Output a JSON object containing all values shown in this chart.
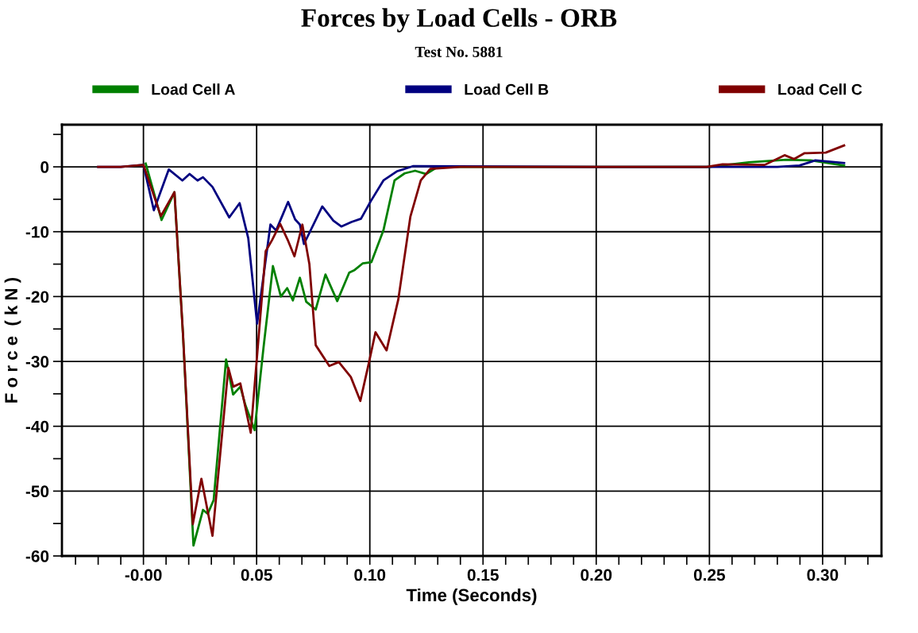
{
  "chart_data": {
    "type": "line",
    "title": "Forces by Load Cells - ORB",
    "subtitle": "Test No. 5881",
    "xlabel": "Time (Seconds)",
    "ylabel": "F o r c e  ( k N )",
    "xlim": [
      -0.036,
      0.326
    ],
    "ylim": [
      -60,
      6.5
    ],
    "xticks": [
      {
        "value": -0.03,
        "label": null
      },
      {
        "value": -0.02,
        "label": null
      },
      {
        "value": -0.01,
        "label": null
      },
      {
        "value": 0,
        "label": "-0.00"
      },
      {
        "value": 0.01,
        "label": null
      },
      {
        "value": 0.02,
        "label": null
      },
      {
        "value": 0.03,
        "label": null
      },
      {
        "value": 0.04,
        "label": null
      },
      {
        "value": 0.05,
        "label": "0.05"
      },
      {
        "value": 0.06,
        "label": null
      },
      {
        "value": 0.07,
        "label": null
      },
      {
        "value": 0.08,
        "label": null
      },
      {
        "value": 0.09,
        "label": null
      },
      {
        "value": 0.1,
        "label": "0.10"
      },
      {
        "value": 0.11,
        "label": null
      },
      {
        "value": 0.12,
        "label": null
      },
      {
        "value": 0.13,
        "label": null
      },
      {
        "value": 0.14,
        "label": null
      },
      {
        "value": 0.15,
        "label": "0.15"
      },
      {
        "value": 0.16,
        "label": null
      },
      {
        "value": 0.17,
        "label": null
      },
      {
        "value": 0.18,
        "label": null
      },
      {
        "value": 0.19,
        "label": null
      },
      {
        "value": 0.2,
        "label": "0.20"
      },
      {
        "value": 0.21,
        "label": null
      },
      {
        "value": 0.22,
        "label": null
      },
      {
        "value": 0.23,
        "label": null
      },
      {
        "value": 0.24,
        "label": null
      },
      {
        "value": 0.25,
        "label": "0.25"
      },
      {
        "value": 0.26,
        "label": null
      },
      {
        "value": 0.27,
        "label": null
      },
      {
        "value": 0.28,
        "label": null
      },
      {
        "value": 0.29,
        "label": null
      },
      {
        "value": 0.3,
        "label": "0.30"
      },
      {
        "value": 0.31,
        "label": null
      },
      {
        "value": 0.32,
        "label": null
      }
    ],
    "yticks": [
      -60,
      {
        "value": -55,
        "label": null
      },
      -50,
      {
        "value": -45,
        "label": null
      },
      -40,
      {
        "value": -35,
        "label": null
      },
      -30,
      {
        "value": -25,
        "label": null
      },
      -20,
      {
        "value": -15,
        "label": null
      },
      -10,
      {
        "value": -5,
        "label": null
      },
      0,
      {
        "value": 5,
        "label": null
      }
    ],
    "grid": true,
    "legend": "top",
    "marker": "none",
    "line_style": "solid",
    "series": [
      {
        "name": "Load Cell A",
        "color": "#008000",
        "x": [
          0.001,
          0.008,
          0.0137,
          0.0175,
          0.0221,
          0.0263,
          0.0284,
          0.031,
          0.0365,
          0.0396,
          0.0428,
          0.045,
          0.0491,
          0.053,
          0.0572,
          0.0607,
          0.0635,
          0.066,
          0.0691,
          0.0719,
          0.0761,
          0.0804,
          0.0856,
          0.0909,
          0.0933,
          0.0968,
          0.1007,
          0.106,
          0.1109,
          0.1154,
          0.12,
          0.1249,
          0.13,
          0.2,
          0.25,
          0.2674,
          0.2839,
          0.2947,
          0.3095
        ],
        "values": [
          0.5,
          -8.2,
          -3.9,
          -26,
          -58.4,
          -52.9,
          -53.5,
          -51.4,
          -29.7,
          -35.1,
          -33.9,
          -36.7,
          -40.6,
          -28,
          -15.3,
          -20,
          -18.7,
          -20.6,
          -17.1,
          -20.8,
          -22,
          -16.6,
          -20.7,
          -16.3,
          -15.9,
          -14.9,
          -14.7,
          -9.8,
          -2.1,
          -1.0,
          -0.6,
          -1.1,
          0,
          0,
          0,
          0.7,
          1.1,
          1.0,
          0.2
        ]
      },
      {
        "name": "Load Cell B",
        "color": "#000080",
        "x": [
          -0.02,
          -0.01,
          0,
          0.0046,
          0.0112,
          0.0172,
          0.0204,
          0.0239,
          0.0263,
          0.0305,
          0.0379,
          0.0425,
          0.0463,
          0.0502,
          0.0561,
          0.0586,
          0.0639,
          0.067,
          0.0691,
          0.0709,
          0.079,
          0.0839,
          0.0874,
          0.0919,
          0.0961,
          0.1004,
          0.106,
          0.1119,
          0.119,
          0.2,
          0.28,
          0.2898,
          0.2968,
          0.3095
        ],
        "values": [
          0,
          0,
          0.3,
          -6.7,
          -0.4,
          -2.1,
          -1.1,
          -2.1,
          -1.6,
          -3.1,
          -7.8,
          -5.6,
          -11,
          -24.2,
          -8.9,
          -9.8,
          -5.4,
          -8.1,
          -8.9,
          -11.9,
          -6.1,
          -8.3,
          -9.2,
          -8.5,
          -8.0,
          -5.3,
          -2.1,
          -0.7,
          0.1,
          0,
          0,
          0.2,
          1.0,
          0.6
        ]
      },
      {
        "name": "Load Cell C",
        "color": "#800000",
        "x": [
          -0.02,
          -0.01,
          0,
          0.0077,
          0.0137,
          0.0175,
          0.0218,
          0.0256,
          0.0305,
          0.0375,
          0.0397,
          0.0428,
          0.0474,
          0.054,
          0.0568,
          0.0604,
          0.0639,
          0.0667,
          0.0702,
          0.0733,
          0.0761,
          0.0821,
          0.0863,
          0.0916,
          0.0958,
          0.0996,
          0.1025,
          0.1074,
          0.1126,
          0.1179,
          0.1225,
          0.1267,
          0.14,
          0.2488,
          0.2558,
          0.2744,
          0.2832,
          0.2874,
          0.2919,
          0.3014,
          0.3095
        ],
        "values": [
          0,
          0,
          0.3,
          -7.6,
          -3.9,
          -26,
          -55.1,
          -48.1,
          -56.9,
          -31.0,
          -33.9,
          -33.4,
          -41.0,
          -13,
          -11.3,
          -8.8,
          -11.4,
          -13.8,
          -8.9,
          -15,
          -27.5,
          -30.7,
          -30.1,
          -32.4,
          -36.1,
          -30.2,
          -25.5,
          -28.3,
          -20.4,
          -7.7,
          -2.1,
          -0.3,
          0,
          0,
          0.4,
          0.3,
          1.8,
          1.2,
          2.1,
          2.2,
          3.3
        ]
      }
    ]
  }
}
